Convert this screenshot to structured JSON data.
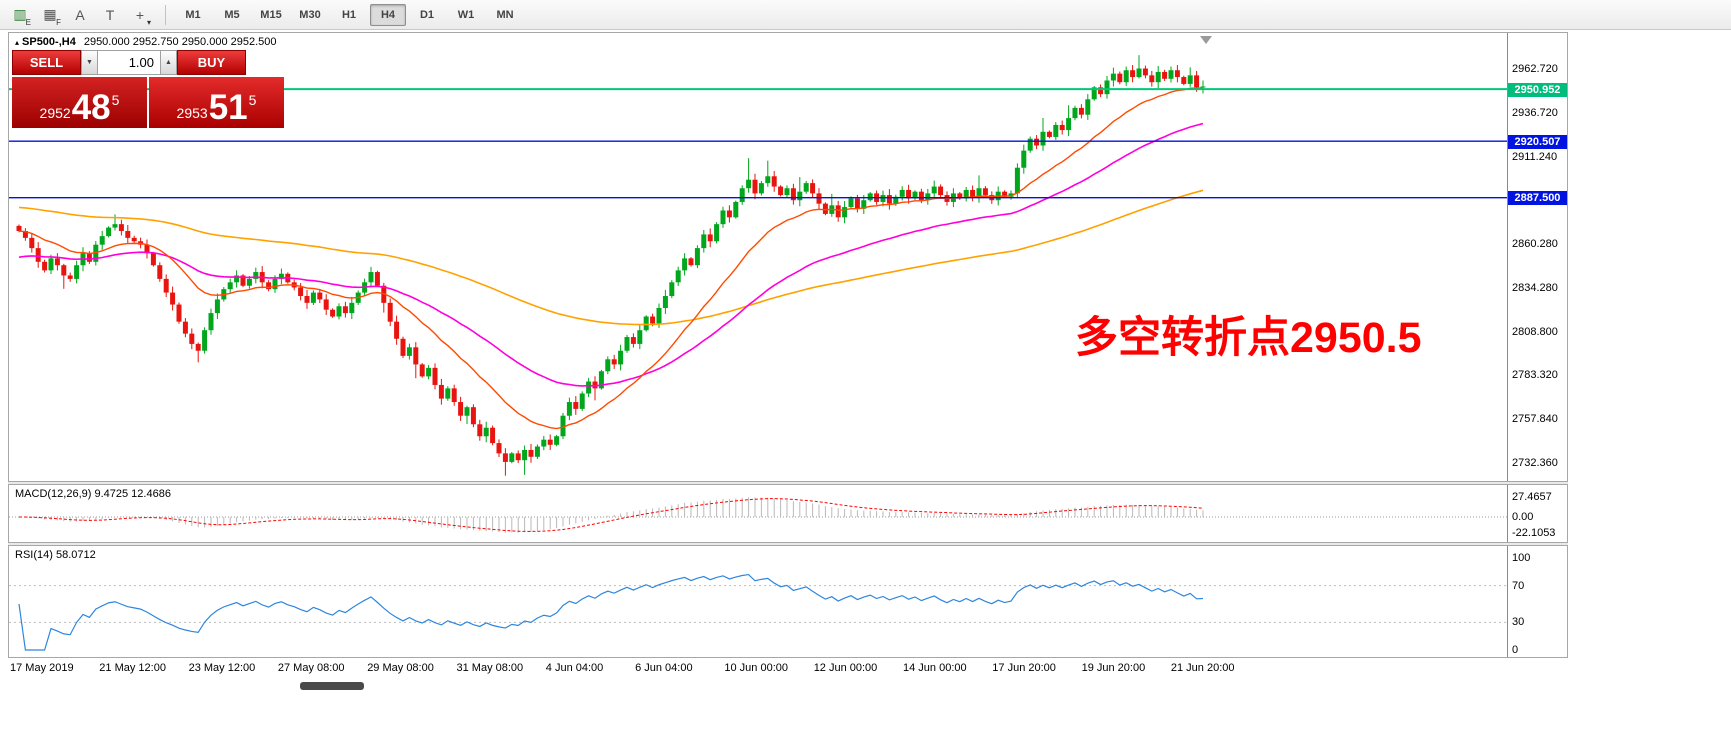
{
  "toolbar": {
    "icons": [
      {
        "name": "mini-chart-icon",
        "glyph": "▥",
        "sub": "E",
        "color": "#2e7d32"
      },
      {
        "name": "grid-icon",
        "glyph": "▦",
        "sub": "F",
        "color": "#555555"
      },
      {
        "name": "text-label-icon",
        "glyph": "A",
        "sub": "",
        "color": "#555555"
      },
      {
        "name": "text-box-icon",
        "glyph": "T",
        "sub": "",
        "color": "#555555"
      },
      {
        "name": "cursor-tool-icon",
        "glyph": "+",
        "sub": "▾",
        "color": "#555555"
      }
    ],
    "timeframes": [
      {
        "label": "M1",
        "active": false
      },
      {
        "label": "M5",
        "active": false
      },
      {
        "label": "M15",
        "active": false
      },
      {
        "label": "M30",
        "active": false
      },
      {
        "label": "H1",
        "active": false
      },
      {
        "label": "H4",
        "active": true
      },
      {
        "label": "D1",
        "active": false
      },
      {
        "label": "W1",
        "active": false
      },
      {
        "label": "MN",
        "active": false
      }
    ]
  },
  "chart": {
    "header": {
      "marker": "▴",
      "symbol": "SP500-,H4",
      "ohlc": "2950.000 2952.750 2950.000 2952.500"
    },
    "trade_panel": {
      "sell_label": "SELL",
      "buy_label": "BUY",
      "volume": "1.00",
      "volume_down_glyph": "▼",
      "volume_up_glyph": "▲",
      "sell_price_small": "2952",
      "sell_price_big": "48",
      "sell_price_sup": "5",
      "buy_price_small": "2953",
      "buy_price_big": "51",
      "buy_price_sup": "5"
    },
    "annotation": "多空转折点2950.5",
    "annotation_color": "#ff0000",
    "price_axis": [
      {
        "t": "2962.720"
      },
      {
        "t": "2950.952",
        "bg": "#00bd7e"
      },
      {
        "t": "2936.720"
      },
      {
        "t": "2920.507",
        "bg": "#0013e0"
      },
      {
        "t": "2911.240"
      },
      {
        "t": "2887.500",
        "bg": "#0013e0"
      },
      {
        "t": "2860.280"
      },
      {
        "t": "2834.280"
      },
      {
        "t": "2808.800"
      },
      {
        "t": "2783.320"
      },
      {
        "t": "2757.840"
      },
      {
        "t": "2732.360"
      }
    ],
    "hlines": [
      {
        "price": 2950.952,
        "color": "#00c878",
        "width": 2
      },
      {
        "price": 2920.507,
        "color": "#0013e0",
        "width": 1.4
      },
      {
        "price": 2887.5,
        "color": "#0013e0",
        "width": 1.4
      }
    ],
    "moving_averages": [
      {
        "period": 120,
        "init": 2882,
        "color": "#ffa200",
        "width": 1.6
      },
      {
        "period": 45,
        "init": 2852,
        "color": "#ff00dc",
        "width": 1.6
      },
      {
        "period": 18,
        "init": 2868,
        "color": "#ff4a00",
        "width": 1.4
      }
    ],
    "candle_colors": {
      "up": "#00a61b",
      "down": "#e8140f"
    }
  },
  "macd": {
    "label": "MACD(12,26,9) 9.4725 12.4686",
    "axis": [
      "27.4657",
      "0.00",
      "-22.1053"
    ],
    "params": [
      12,
      26,
      9
    ],
    "signal_color": "#ff0000",
    "histogram_color": "#b9b9b9"
  },
  "rsi": {
    "label": "RSI(14) 58.0712",
    "axis": [
      "100",
      "70",
      "30",
      "0"
    ],
    "period": 14,
    "levels": [
      70,
      30
    ],
    "line_color": "#2e86de"
  },
  "chart_data": {
    "type": "candlestick",
    "title": "SP500- H4",
    "y_axis_range": [
      2732.36,
      2962.72
    ],
    "time_labels": [
      "17 May 2019",
      "21 May 12:00",
      "23 May 12:00",
      "27 May 08:00",
      "29 May 08:00",
      "31 May 08:00",
      "4 Jun 04:00",
      "6 Jun 04:00",
      "10 Jun 00:00",
      "12 Jun 00:00",
      "14 Jun 00:00",
      "17 Jun 20:00",
      "19 Jun 20:00",
      "21 Jun 20:00"
    ],
    "closes": [
      2868,
      2864,
      2858,
      2850,
      2845,
      2852,
      2848,
      2842,
      2840,
      2848,
      2855,
      2850,
      2860,
      2865,
      2870,
      2872,
      2868,
      2864,
      2862,
      2860,
      2855,
      2848,
      2840,
      2832,
      2825,
      2815,
      2808,
      2802,
      2798,
      2810,
      2820,
      2828,
      2834,
      2838,
      2842,
      2836,
      2840,
      2844,
      2838,
      2834,
      2840,
      2843,
      2838,
      2835,
      2830,
      2826,
      2832,
      2828,
      2822,
      2818,
      2824,
      2820,
      2826,
      2832,
      2838,
      2844,
      2836,
      2826,
      2815,
      2805,
      2795,
      2800,
      2790,
      2783,
      2788,
      2778,
      2770,
      2776,
      2768,
      2760,
      2765,
      2755,
      2748,
      2753,
      2744,
      2738,
      2733,
      2738,
      2734,
      2740,
      2736,
      2742,
      2746,
      2743,
      2748,
      2760,
      2768,
      2764,
      2773,
      2780,
      2776,
      2786,
      2793,
      2790,
      2798,
      2806,
      2802,
      2810,
      2818,
      2814,
      2823,
      2830,
      2838,
      2845,
      2852,
      2848,
      2858,
      2866,
      2862,
      2872,
      2880,
      2876,
      2885,
      2893,
      2898,
      2890,
      2896,
      2900,
      2894,
      2889,
      2893,
      2886,
      2891,
      2896,
      2890,
      2884,
      2878,
      2883,
      2876,
      2882,
      2887,
      2881,
      2886,
      2890,
      2885,
      2889,
      2884,
      2888,
      2892,
      2887,
      2891,
      2886,
      2890,
      2894,
      2889,
      2885,
      2890,
      2887,
      2892,
      2888,
      2893,
      2889,
      2886,
      2891,
      2888,
      2890,
      2905,
      2915,
      2922,
      2918,
      2926,
      2923,
      2930,
      2927,
      2934,
      2940,
      2936,
      2945,
      2952,
      2948,
      2956,
      2960,
      2955,
      2962,
      2958,
      2963,
      2959,
      2955,
      2961,
      2957,
      2962,
      2958,
      2954,
      2959,
      2952,
      2952.5
    ],
    "spikes": {
      "7": [
        0,
        7
      ],
      "15": [
        4,
        0
      ],
      "28": [
        0,
        6
      ],
      "57": [
        0,
        4
      ],
      "62": [
        0,
        5
      ],
      "70": [
        0,
        4
      ],
      "76": [
        0,
        5
      ],
      "79": [
        0,
        6
      ],
      "90": [
        0,
        4
      ],
      "114": [
        10,
        0
      ],
      "117": [
        7,
        0
      ],
      "122": [
        5,
        0
      ],
      "127": [
        5,
        0
      ],
      "150": [
        4,
        0
      ],
      "160": [
        5,
        0
      ],
      "164": [
        4,
        0
      ],
      "175": [
        7,
        0
      ],
      "183": [
        3,
        0
      ]
    }
  }
}
